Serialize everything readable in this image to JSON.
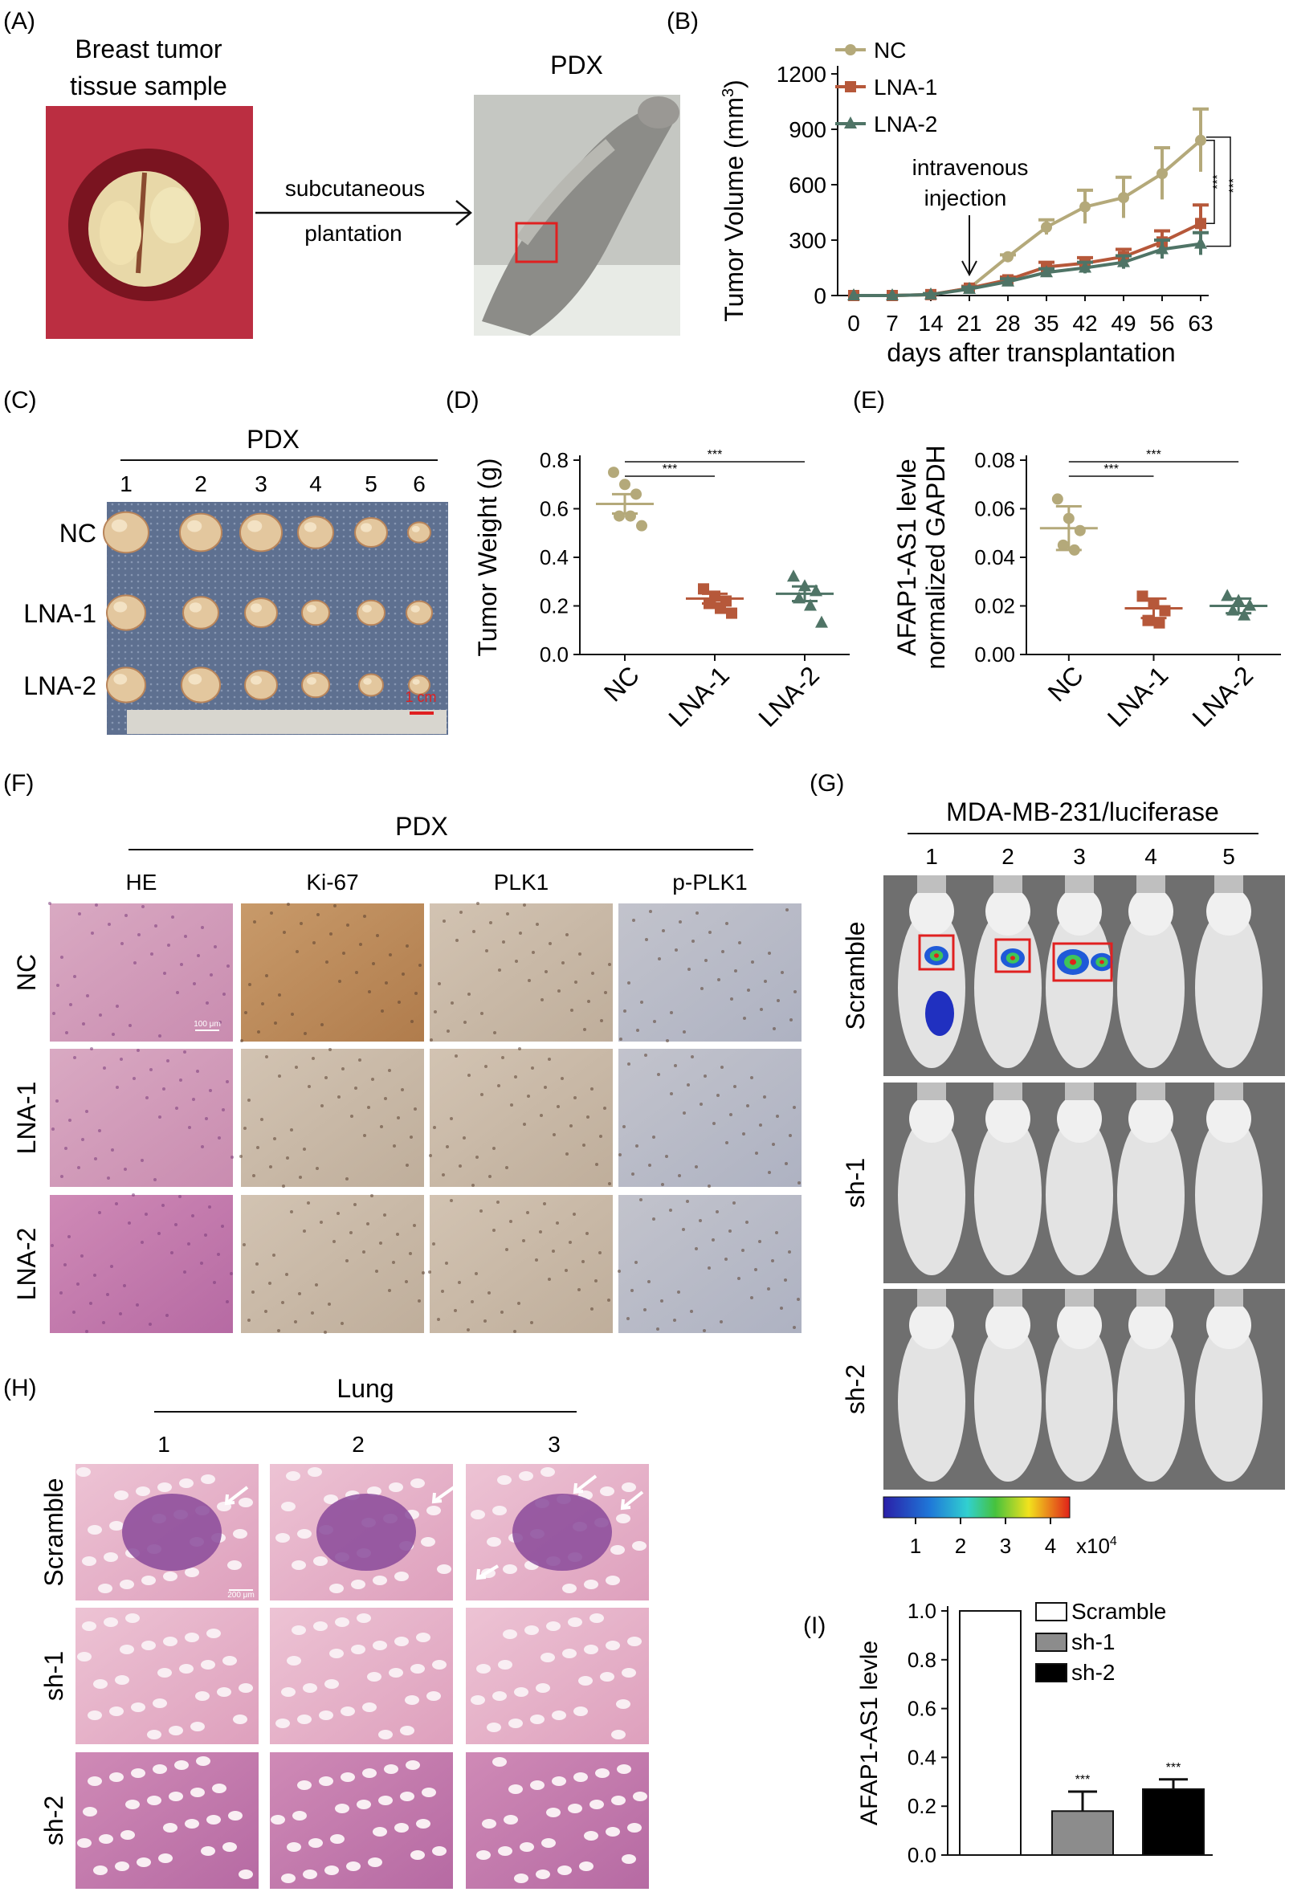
{
  "colors": {
    "nc": "#b4a97a",
    "lna1": "#b6583a",
    "lna2": "#4f7466",
    "scramble_bar": "#ffffff",
    "sh1_bar": "#8c8c8c",
    "sh2_bar": "#000000",
    "tissue_he": "#d9a1b8",
    "tissue_ihc": "#c7a37c",
    "tissue_lung": "#e7b2c8",
    "tumor": "#e3c79e",
    "mouse_bg": "#6f6f6f",
    "mouse_body": "#e3e3e3",
    "box": "#e02020"
  },
  "panels": {
    "A": {
      "letter": "(A)",
      "sample_title_1": "Breast tumor",
      "sample_title_2": "tissue sample",
      "arrow_text_1": "subcutaneous",
      "arrow_text_2": "plantation",
      "pdx_title": "PDX",
      "icons": [
        "tumor-tissue-photo",
        "pdx-mouse-photo",
        "arrow-right-icon"
      ]
    },
    "B": {
      "letter": "(B)"
    },
    "C": {
      "letter": "(C)",
      "title": "PDX",
      "columns": [
        "1",
        "2",
        "3",
        "4",
        "5",
        "6"
      ],
      "rows": [
        "NC",
        "LNA-1",
        "LNA-2"
      ],
      "scale_label": "1 cm"
    },
    "D": {
      "letter": "(D)"
    },
    "E": {
      "letter": "(E)"
    },
    "F": {
      "letter": "(F)",
      "title": "PDX",
      "columns": [
        "HE",
        "Ki-67",
        "PLK1",
        "p-PLK1"
      ],
      "rows": [
        "NC",
        "LNA-1",
        "LNA-2"
      ],
      "scale_label": "100 μm"
    },
    "G": {
      "letter": "(G)",
      "title": "MDA-MB-231/luciferase",
      "columns": [
        "1",
        "2",
        "3",
        "4",
        "5"
      ],
      "rows": [
        "Scramble",
        "sh-1",
        "sh-2"
      ],
      "colorbar_ticks": [
        "1",
        "2",
        "3",
        "4"
      ],
      "colorbar_unit": "x10",
      "colorbar_exp": "4"
    },
    "H": {
      "letter": "(H)",
      "title": "Lung",
      "columns": [
        "1",
        "2",
        "3"
      ],
      "rows": [
        "Scramble",
        "sh-1",
        "sh-2"
      ],
      "scale_label": "200 μm"
    },
    "I": {
      "letter": "(I)"
    }
  },
  "chart_data": [
    {
      "id": "B",
      "type": "line",
      "xlabel": "days after transplantation",
      "ylabel": "Tumor Volume (mm",
      "ylabel_sup": "3",
      "ylabel_end": ")",
      "x": [
        0,
        7,
        14,
        21,
        28,
        35,
        42,
        49,
        56,
        63
      ],
      "ylim": [
        0,
        1200
      ],
      "yticks": [
        0,
        300,
        600,
        900,
        1200
      ],
      "series": [
        {
          "name": "NC",
          "values": [
            0,
            0,
            5,
            40,
            210,
            370,
            480,
            530,
            660,
            840
          ],
          "errors": [
            0,
            0,
            5,
            10,
            10,
            40,
            90,
            110,
            140,
            170
          ]
        },
        {
          "name": "LNA-1",
          "values": [
            0,
            0,
            5,
            40,
            85,
            155,
            175,
            210,
            290,
            390
          ],
          "errors": [
            0,
            0,
            5,
            10,
            15,
            25,
            30,
            40,
            60,
            100
          ]
        },
        {
          "name": "LNA-2",
          "values": [
            0,
            0,
            5,
            35,
            75,
            125,
            150,
            180,
            250,
            280
          ],
          "errors": [
            0,
            0,
            5,
            10,
            15,
            20,
            30,
            35,
            50,
            60
          ]
        }
      ],
      "annotation": "intravenous\ninjection",
      "significance": [
        "***",
        "***"
      ],
      "legend": "top-left"
    },
    {
      "id": "D",
      "type": "scatter",
      "ylabel": "Tumor Weight (g)",
      "categories": [
        "NC",
        "LNA-1",
        "LNA-2"
      ],
      "ylim": [
        0,
        0.8
      ],
      "yticks": [
        "0.0",
        "0.2",
        "0.4",
        "0.6",
        "0.8"
      ],
      "points": [
        [
          0.75,
          0.7,
          0.66,
          0.57,
          0.57,
          0.53
        ],
        [
          0.27,
          0.24,
          0.22,
          0.21,
          0.19,
          0.17
        ],
        [
          0.32,
          0.28,
          0.26,
          0.23,
          0.2,
          0.13
        ]
      ],
      "means": [
        0.62,
        0.23,
        0.25
      ],
      "errors": [
        0.04,
        0.02,
        0.03
      ],
      "significance": [
        "***",
        "***"
      ]
    },
    {
      "id": "E",
      "type": "scatter",
      "ylabel_1": "AFAP1-AS1 levle",
      "ylabel_2": "normalized GAPDH",
      "categories": [
        "NC",
        "LNA-1",
        "LNA-2"
      ],
      "ylim": [
        0,
        0.08
      ],
      "yticks": [
        "0.00",
        "0.02",
        "0.04",
        "0.06",
        "0.08"
      ],
      "points": [
        [
          0.064,
          0.056,
          0.051,
          0.045,
          0.043
        ],
        [
          0.024,
          0.021,
          0.018,
          0.014,
          0.013
        ],
        [
          0.024,
          0.022,
          0.02,
          0.018,
          0.016
        ]
      ],
      "means": [
        0.052,
        0.019,
        0.02
      ],
      "errors": [
        0.009,
        0.004,
        0.003
      ],
      "significance": [
        "***",
        "***"
      ]
    },
    {
      "id": "I",
      "type": "bar",
      "ylabel": "AFAP1-AS1 levle",
      "categories": [
        "Scramble",
        "sh-1",
        "sh-2"
      ],
      "values": [
        1.0,
        0.18,
        0.27
      ],
      "errors": [
        0,
        0.08,
        0.04
      ],
      "ylim": [
        0,
        1.0
      ],
      "yticks": [
        "0.0",
        "0.2",
        "0.4",
        "0.6",
        "0.8",
        "1.0"
      ],
      "significance": [
        "***",
        "***"
      ],
      "legend": "top-right"
    }
  ]
}
